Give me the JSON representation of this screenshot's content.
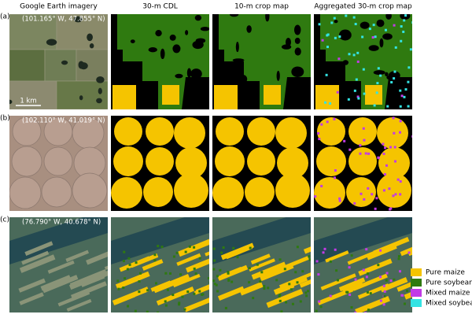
{
  "columns": [
    "Google Earth imagery",
    "30-m CDL",
    "10-m crop map",
    "Aggregated 30-m crop map"
  ],
  "rows": [
    {
      "label": "(a)",
      "coordinates": "(101.165° W, 47.855° N)"
    },
    {
      "label": "(b)",
      "coordinates": "(102.110° W, 41.019° N)"
    },
    {
      "label": "(c)",
      "coordinates": "(76.790° W, 40.678° N)"
    }
  ],
  "scale_bar": "1 km",
  "legend": [
    {
      "name": "Pure maize",
      "color": "#f5c400"
    },
    {
      "name": "Pure soybean",
      "color": "#2f7a10"
    },
    {
      "name": "Mixed maize",
      "color": "#c23be6"
    },
    {
      "name": "Mixed soybean",
      "color": "#33e3e3"
    }
  ]
}
